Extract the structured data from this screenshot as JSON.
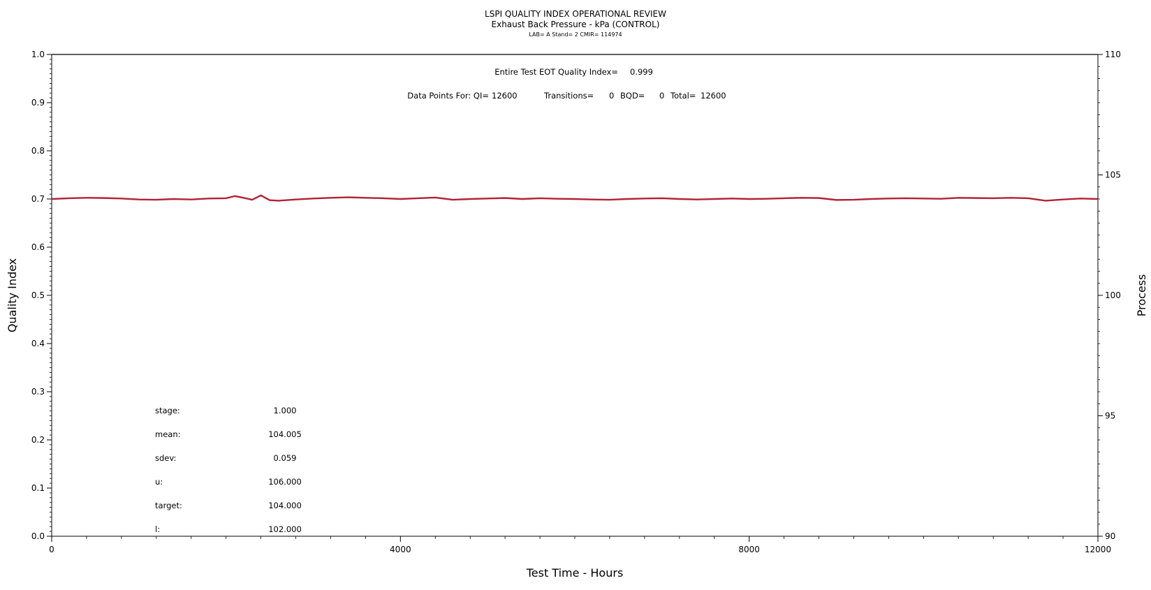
{
  "chart_data": {
    "type": "line",
    "title": "LSPI QUALITY INDEX OPERATIONAL REVIEW",
    "subtitle": "Exhaust Back Pressure - kPa (CONTROL)",
    "subtitle2": "LAB= A Stand= 2 CMIR= 114974",
    "xlabel": "Test Time - Hours",
    "ylabel_left": "Quality Index",
    "ylabel_right": "Process",
    "xlim": [
      0,
      12000
    ],
    "ylim_left": [
      0,
      1
    ],
    "ylim_right": [
      90,
      110
    ],
    "x_ticks": [
      "0",
      "4000",
      "8000",
      "12000"
    ],
    "y_left_ticks": [
      "0.0",
      "0.1",
      "0.2",
      "0.3",
      "0.4",
      "0.5",
      "0.6",
      "0.7",
      "0.8",
      "0.9",
      "1.0"
    ],
    "y_right_ticks": [
      "90",
      "95",
      "100",
      "105",
      "110"
    ],
    "annotations": {
      "eot_label": "Entire Test EOT Quality Index=",
      "eot_value": "0.999",
      "points_label": "Data Points For: QI=",
      "qi_count": "12600",
      "transitions_label": "Transitions=",
      "transitions": "0",
      "bqd_label": "BQD=",
      "bqd": "0",
      "total_label": "Total=",
      "total": "12600"
    },
    "stats": [
      {
        "label": "stage:",
        "value": "1.000"
      },
      {
        "label": "mean:",
        "value": "104.005"
      },
      {
        "label": "sdev:",
        "value": "0.059"
      },
      {
        "label": "u:",
        "value": "106.000"
      },
      {
        "label": "target:",
        "value": "104.000"
      },
      {
        "label": "l:",
        "value": "102.000"
      }
    ],
    "series": [
      {
        "axis": "left",
        "x": [
          0,
          12000
        ],
        "values": [
          1.0,
          1.0
        ],
        "color": "#000000"
      },
      {
        "axis": "right",
        "color": "#b22234",
        "x": [
          0,
          200,
          400,
          600,
          800,
          1000,
          1200,
          1400,
          1600,
          1800,
          2000,
          2100,
          2200,
          2300,
          2400,
          2500,
          2600,
          2800,
          3000,
          3200,
          3400,
          3600,
          3800,
          4000,
          4200,
          4400,
          4600,
          4800,
          5000,
          5200,
          5400,
          5600,
          5800,
          6000,
          6200,
          6400,
          6600,
          6800,
          7000,
          7200,
          7400,
          7600,
          7800,
          8000,
          8200,
          8400,
          8600,
          8800,
          9000,
          9200,
          9400,
          9600,
          9800,
          10000,
          10200,
          10400,
          10600,
          10800,
          11000,
          11200,
          11400,
          11600,
          11800,
          12000
        ],
        "values": [
          104.0,
          104.03,
          104.05,
          104.04,
          104.02,
          103.98,
          103.97,
          104.0,
          103.98,
          104.02,
          104.03,
          104.12,
          104.05,
          103.97,
          104.15,
          103.95,
          103.93,
          103.98,
          104.02,
          104.05,
          104.07,
          104.05,
          104.03,
          104.0,
          104.03,
          104.06,
          103.97,
          104.0,
          104.02,
          104.04,
          104.0,
          104.03,
          104.01,
          104.0,
          103.98,
          103.97,
          104.0,
          104.02,
          104.03,
          104.0,
          103.98,
          104.0,
          104.02,
          104.0,
          104.01,
          104.03,
          104.05,
          104.04,
          103.96,
          103.97,
          104.0,
          104.02,
          104.03,
          104.02,
          104.01,
          104.05,
          104.04,
          104.03,
          104.05,
          104.03,
          103.93,
          103.98,
          104.02,
          104.0
        ]
      }
    ]
  }
}
